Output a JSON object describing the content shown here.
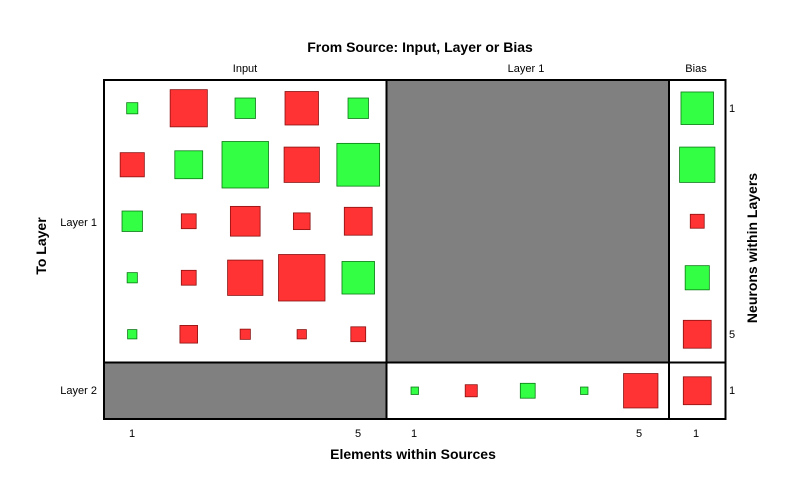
{
  "chart_data": {
    "type": "hinton",
    "title": "From Source: Input, Layer or Bias",
    "xlabel": "Elements within Sources",
    "ylabel": "To Layer",
    "right_label": "Neurons within Layers",
    "sources": [
      "Input",
      "Layer 1",
      "Bias"
    ],
    "layers": [
      "Layer 1",
      "Layer 2"
    ],
    "x_ticks": {
      "Input": [
        "1",
        "5"
      ],
      "Layer 1": [
        "1",
        "5"
      ],
      "Bias": [
        "1"
      ]
    },
    "y_ticks": {
      "Layer 1": [
        "1",
        "5"
      ],
      "Layer 2": [
        "1"
      ]
    },
    "colors": {
      "positive": "#33ff44",
      "negative": "#ff3333",
      "empty": "#808080"
    },
    "blocks": [
      {
        "to": "Layer 1",
        "from": "Input",
        "empty": false,
        "weights": [
          [
            0.12,
            -0.4,
            0.22,
            -0.36,
            0.22
          ],
          [
            -0.26,
            0.3,
            0.55,
            -0.38,
            0.46
          ],
          [
            0.22,
            -0.16,
            -0.32,
            -0.18,
            -0.3
          ],
          [
            0.11,
            -0.16,
            -0.38,
            -0.5,
            0.35
          ],
          [
            0.1,
            -0.19,
            -0.11,
            -0.1,
            -0.16
          ]
        ]
      },
      {
        "to": "Layer 1",
        "from": "Layer 1",
        "empty": true
      },
      {
        "to": "Layer 1",
        "from": "Bias",
        "empty": false,
        "weights": [
          [
            0.35
          ],
          [
            0.38
          ],
          [
            -0.15
          ],
          [
            0.26
          ],
          [
            -0.3
          ]
        ]
      },
      {
        "to": "Layer 2",
        "from": "Input",
        "empty": true
      },
      {
        "to": "Layer 2",
        "from": "Layer 1",
        "empty": false,
        "weights": [
          [
            0.08,
            -0.13,
            0.16,
            0.08,
            -0.37
          ]
        ]
      },
      {
        "to": "Layer 2",
        "from": "Bias",
        "empty": false,
        "weights": [
          [
            -0.3
          ]
        ]
      }
    ]
  }
}
